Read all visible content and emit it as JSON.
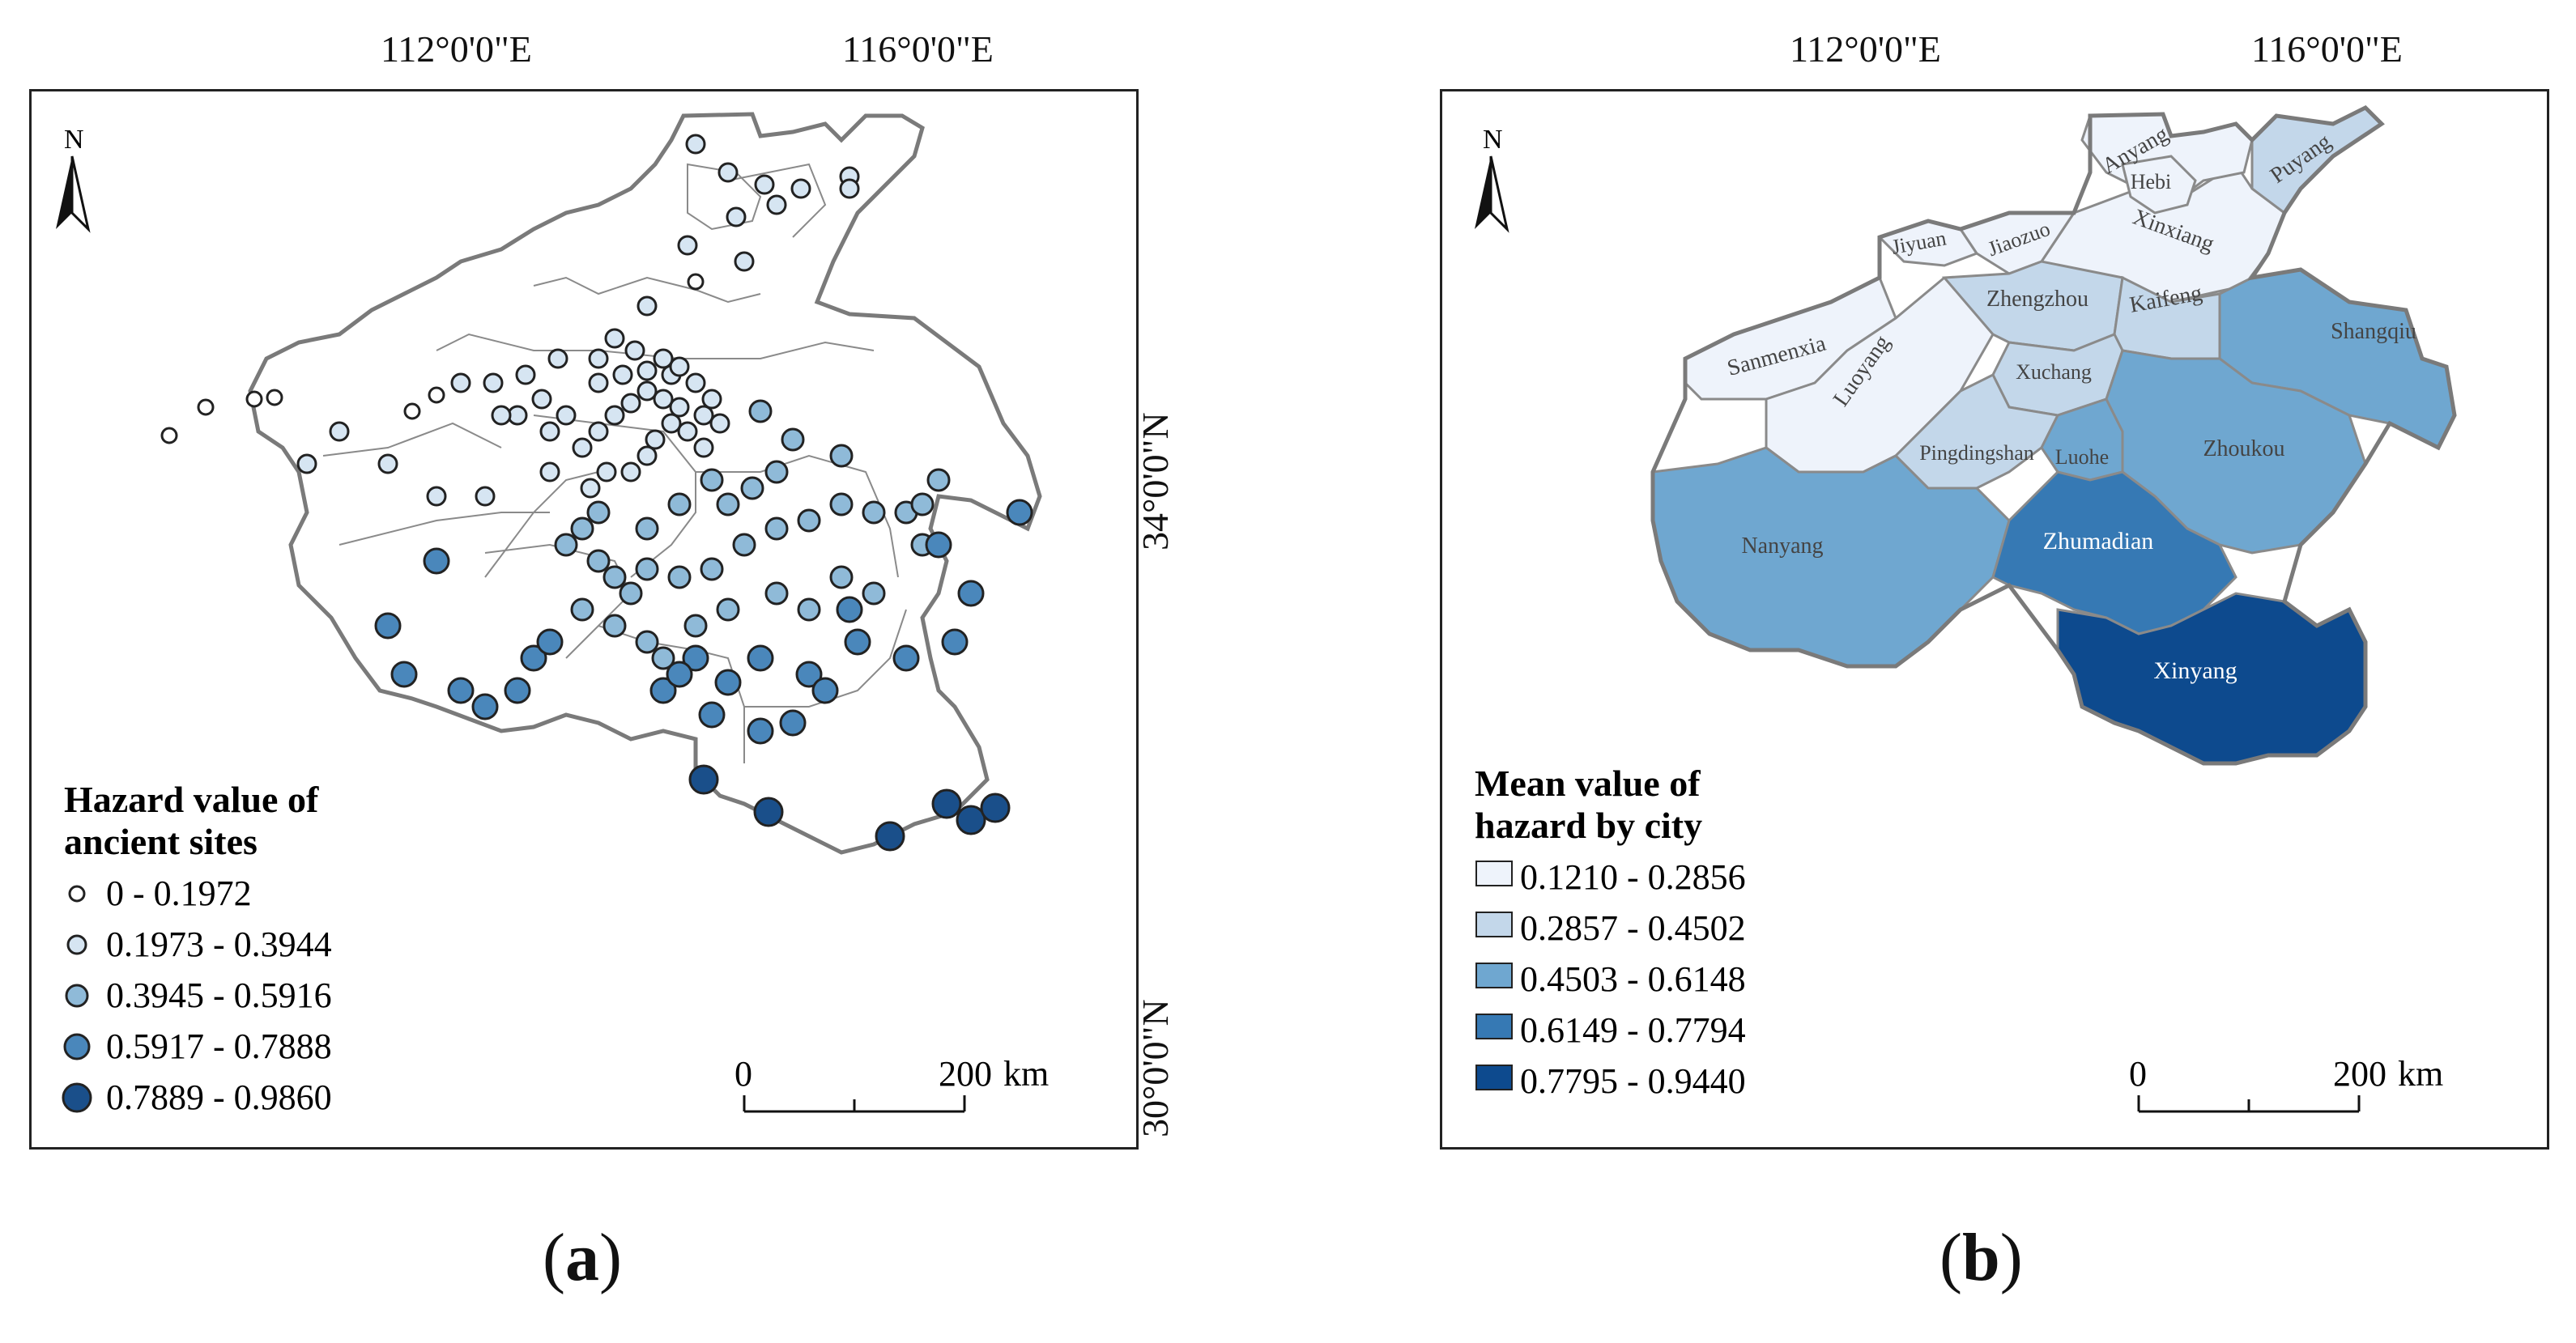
{
  "coordinates": {
    "lon_left": "112°0'0\"E",
    "lon_right": "116°0'0\"E",
    "lat_top": "34°0'0\"N",
    "lat_bottom": "30°0'0\"N"
  },
  "north_arrow": "N",
  "scale_bar": {
    "start": "0",
    "end": "200",
    "unit": "km"
  },
  "panel_a": {
    "label": "a",
    "legend_title_1": "Hazard value of",
    "legend_title_2": "ancient sites",
    "classes": [
      {
        "range": "0 - 0.1972",
        "color": "#ffffff"
      },
      {
        "range": "0.1973 - 0.3944",
        "color": "#d6e5f2"
      },
      {
        "range": "0.3945 - 0.5916",
        "color": "#8fbad8"
      },
      {
        "range": "0.5917 - 0.7888",
        "color": "#4a87bb"
      },
      {
        "range": "0.7889 - 0.9860",
        "color": "#1a4f8a"
      }
    ]
  },
  "panel_b": {
    "label": "b",
    "legend_title_1": "Mean value of",
    "legend_title_2": "hazard by city",
    "classes": [
      {
        "range": "0.1210 - 0.2856",
        "color": "#eef3fb"
      },
      {
        "range": "0.2857 - 0.4502",
        "color": "#c3d7ea"
      },
      {
        "range": "0.4503 - 0.6148",
        "color": "#6fa7d0"
      },
      {
        "range": "0.6149 - 0.7794",
        "color": "#3679b4"
      },
      {
        "range": "0.7795 - 0.9440",
        "color": "#0d4a8e"
      }
    ],
    "cities": [
      "Anyang",
      "Hebi",
      "Puyang",
      "Jiyuan",
      "Jiaozuo",
      "Xinxiang",
      "Sanmenxia",
      "Luoyang",
      "Zhengzhou",
      "Kaifeng",
      "Shangqiu",
      "Xuchang",
      "Pingdingshan",
      "Luohe",
      "Zhoukou",
      "Nanyang",
      "Zhumadian",
      "Xinyang"
    ]
  }
}
